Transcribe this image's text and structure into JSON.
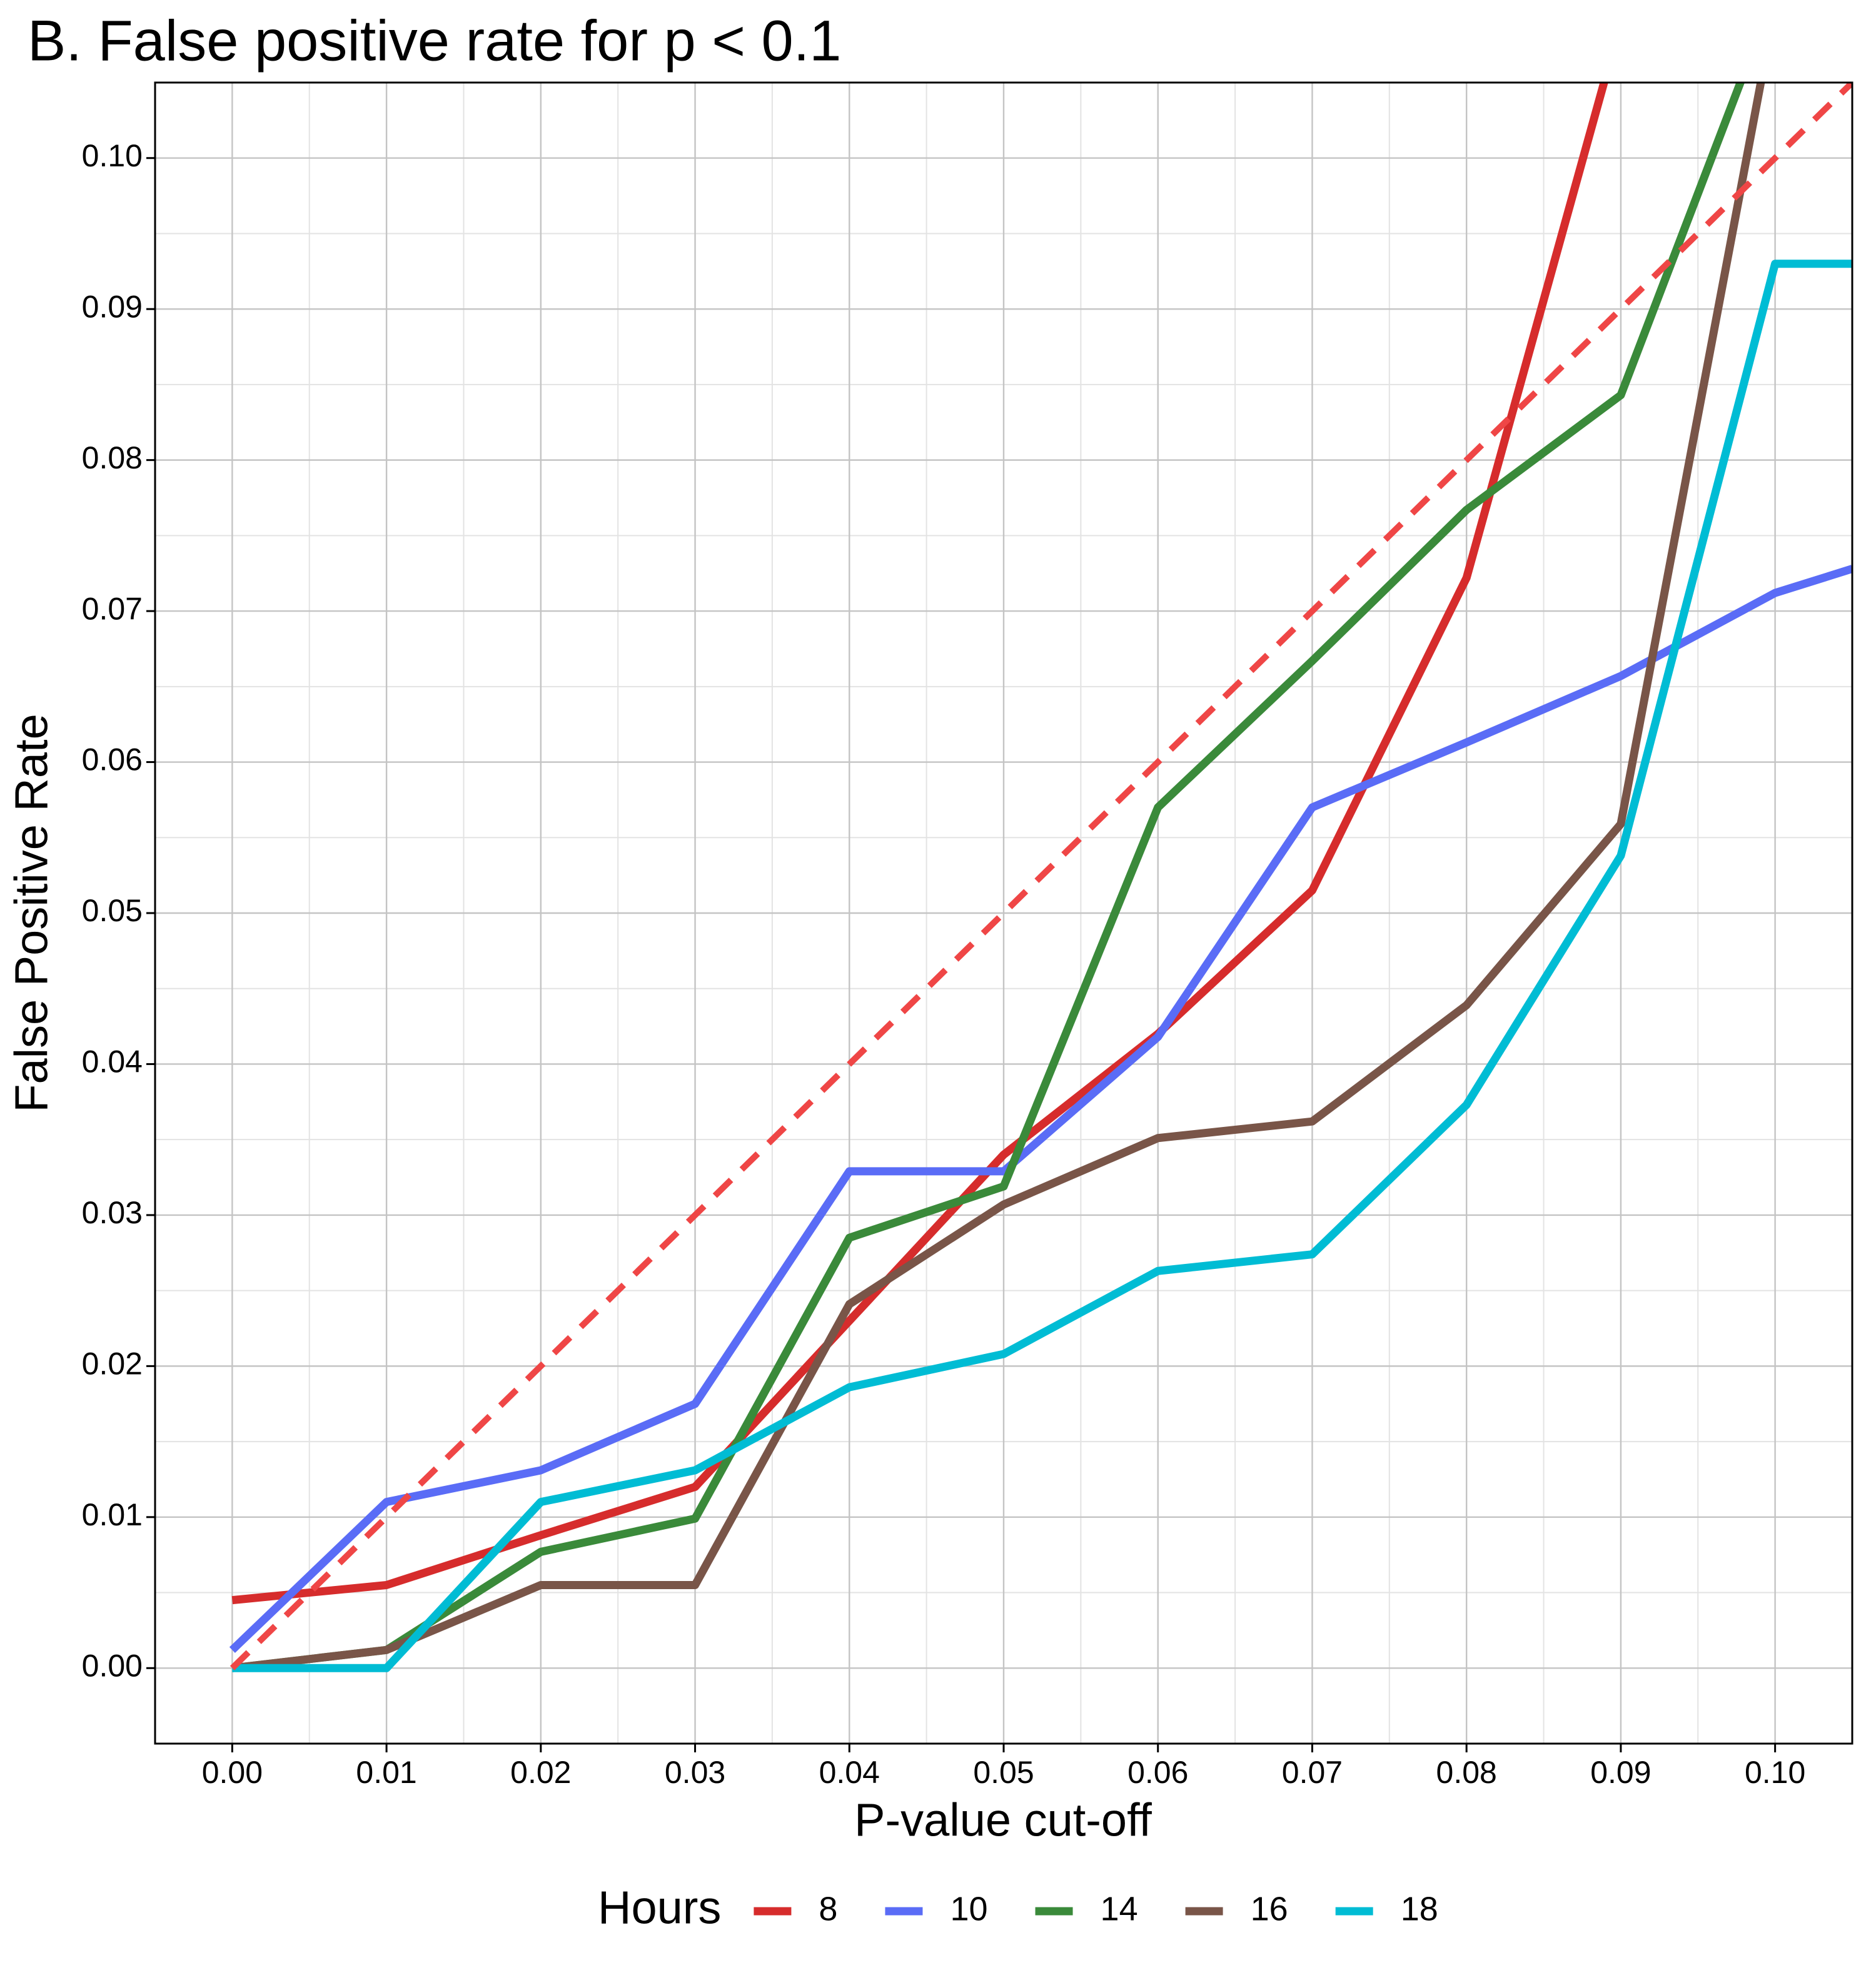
{
  "chart_data": {
    "type": "line",
    "title": "B. False positive rate for p < 0.1",
    "x_label": "P-value cut-off",
    "y_label": "False Positive Rate",
    "legend_title": "Hours",
    "legend_position": "bottom",
    "grid": true,
    "minor_grid": true,
    "xlim": [
      -0.005,
      0.105
    ],
    "ylim": [
      -0.005,
      0.105
    ],
    "xticks": [
      {
        "value": 0,
        "label": "0.00"
      },
      0.01,
      0.02,
      0.03,
      0.04,
      0.05,
      0.06,
      0.07,
      0.08,
      0.09,
      {
        "value": 0.1,
        "label": "0.10"
      }
    ],
    "yticks": [
      {
        "value": 0,
        "label": "0.00"
      },
      0.01,
      0.02,
      0.03,
      0.04,
      0.05,
      0.06,
      0.07,
      0.08,
      0.09,
      {
        "value": 0.1,
        "label": "0.10"
      }
    ],
    "x": [
      0,
      0.01,
      0.02,
      0.03,
      0.04,
      0.05,
      0.06,
      0.07,
      0.08,
      0.09,
      0.1,
      0.105
    ],
    "series": [
      {
        "name": "8",
        "color": "#d62c2c",
        "values": [
          0.0045,
          0.0055,
          0.0088,
          0.012,
          0.023,
          0.034,
          0.042,
          0.0515,
          0.0722,
          0.109,
          null,
          null
        ]
      },
      {
        "name": "10",
        "color": "#5a6cf6",
        "values": [
          0.0012,
          0.011,
          0.0131,
          0.0175,
          0.0329,
          0.0329,
          0.0418,
          0.057,
          0.0613,
          0.0657,
          0.0712,
          0.0728
        ]
      },
      {
        "name": "14",
        "color": "#3a8a3a",
        "values": [
          0,
          0.0012,
          0.0077,
          0.0099,
          0.0285,
          0.0319,
          0.057,
          0.0667,
          0.0767,
          0.0843,
          0.111,
          null
        ]
      },
      {
        "name": "16",
        "color": "#795548",
        "values": [
          0,
          0.0012,
          0.0055,
          0.0055,
          0.0241,
          0.0307,
          0.0351,
          0.0362,
          0.0439,
          0.0559,
          0.11,
          null
        ]
      },
      {
        "name": "18",
        "color": "#00bcd4",
        "values": [
          0,
          0,
          0.011,
          0.0131,
          0.0186,
          0.0208,
          0.0263,
          0.0274,
          0.0373,
          0.0538,
          0.093,
          0.093
        ]
      }
    ],
    "reference_line": {
      "x": [
        0,
        0.105
      ],
      "values": [
        0,
        0.105
      ],
      "color": "#ef4646",
      "dashed": true
    }
  }
}
